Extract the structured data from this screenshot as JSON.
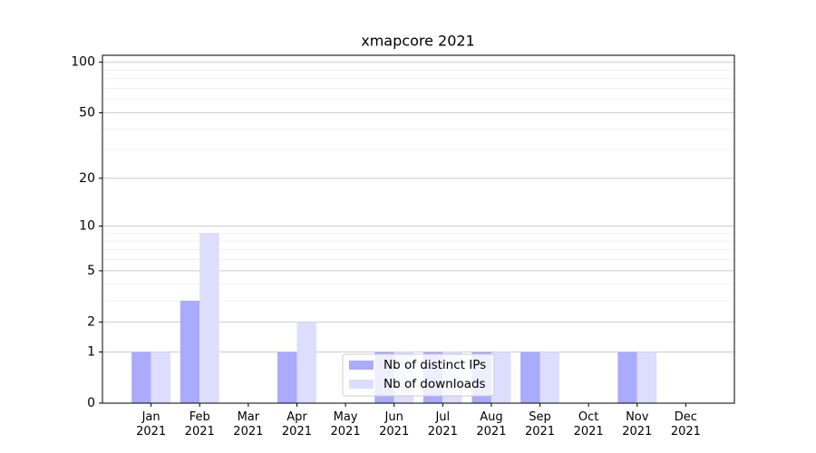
{
  "chart_data": {
    "type": "bar",
    "title": "xmapcore 2021",
    "categories": [
      "Jan\n2021",
      "Feb\n2021",
      "Mar\n2021",
      "Apr\n2021",
      "May\n2021",
      "Jun\n2021",
      "Jul\n2021",
      "Aug\n2021",
      "Sep\n2021",
      "Oct\n2021",
      "Nov\n2021",
      "Dec\n2021"
    ],
    "series": [
      {
        "name": "Nb of distinct IPs",
        "color": "#aaaaff",
        "values": [
          1,
          3,
          0,
          1,
          0,
          1,
          1,
          1,
          1,
          0,
          1,
          0
        ]
      },
      {
        "name": "Nb of downloads",
        "color": "#ddddff",
        "values": [
          1,
          9,
          0,
          2,
          0,
          1,
          1,
          1,
          1,
          0,
          1,
          0
        ]
      }
    ],
    "yscale": "symlog",
    "ylim": [
      0,
      110
    ],
    "yticks": [
      0,
      1,
      2,
      5,
      10,
      20,
      50,
      100
    ],
    "minor_yticks": [
      3,
      4,
      6,
      7,
      8,
      9,
      30,
      40,
      60,
      70,
      80,
      90
    ],
    "grid": true,
    "legend": "lower center"
  }
}
